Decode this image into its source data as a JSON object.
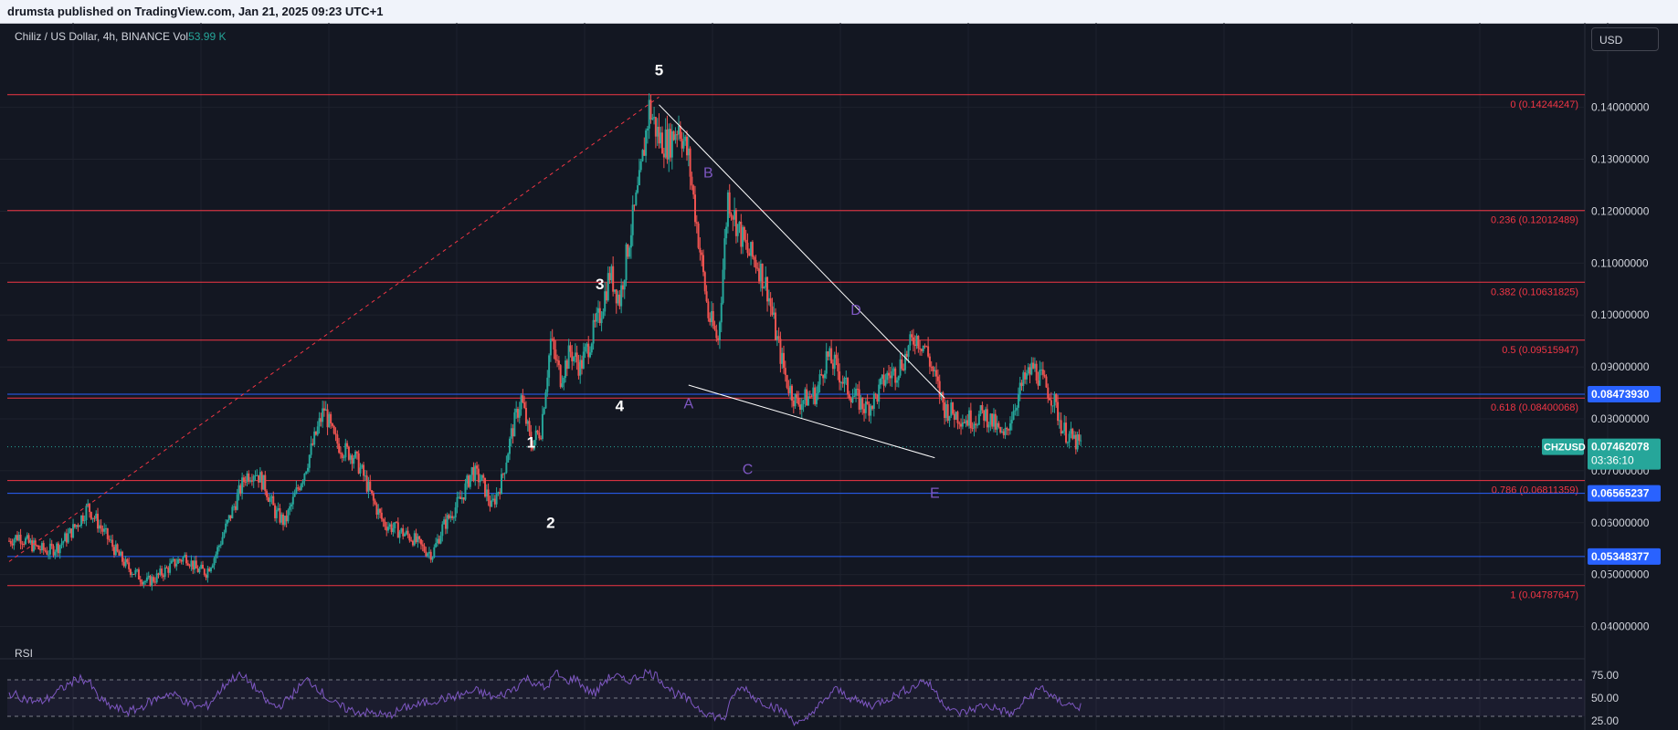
{
  "header": {
    "published_by": "drumsta published on TradingView.com, Jan 21, 2025 09:23 UTC+1"
  },
  "symbol": {
    "title": "Chiliz / US Dollar, 4h, BINANCE",
    "volume_label": "Vol",
    "volume_value": "53.99 K"
  },
  "currency_button": "USD",
  "rsi_label": "RSI",
  "chart_data": {
    "type": "candlestick",
    "symbol": "CHZUSD",
    "timeframe": "4h",
    "exchange": "BINANCE",
    "ylim": [
      0.035,
      0.1475
    ],
    "y_ticks": [
      "0.14000000",
      "0.13000000",
      "0.12000000",
      "0.11000000",
      "0.10000000",
      "0.09000000",
      "0.08000000",
      "0.07000000",
      "0.06000000",
      "0.05000000",
      "0.04000000"
    ],
    "last_price": "0.07462078",
    "countdown": "03:36:10",
    "price_series_approx": [
      0.0565,
      0.0575,
      0.056,
      0.055,
      0.0545,
      0.0555,
      0.0575,
      0.06,
      0.063,
      0.06,
      0.057,
      0.054,
      0.0515,
      0.05,
      0.0485,
      0.0495,
      0.051,
      0.0525,
      0.0535,
      0.051,
      0.0505,
      0.054,
      0.059,
      0.064,
      0.069,
      0.07,
      0.067,
      0.062,
      0.06,
      0.065,
      0.07,
      0.076,
      0.082,
      0.076,
      0.074,
      0.073,
      0.069,
      0.064,
      0.06,
      0.059,
      0.058,
      0.057,
      0.055,
      0.054,
      0.059,
      0.062,
      0.065,
      0.07,
      0.068,
      0.063,
      0.068,
      0.077,
      0.084,
      0.075,
      0.078,
      0.095,
      0.088,
      0.093,
      0.09,
      0.095,
      0.1,
      0.108,
      0.103,
      0.115,
      0.125,
      0.14,
      0.134,
      0.133,
      0.137,
      0.13,
      0.115,
      0.1,
      0.095,
      0.123,
      0.117,
      0.112,
      0.11,
      0.105,
      0.095,
      0.087,
      0.083,
      0.084,
      0.085,
      0.092,
      0.09,
      0.086,
      0.084,
      0.082,
      0.084,
      0.088,
      0.089,
      0.092,
      0.096,
      0.094,
      0.088,
      0.082,
      0.081,
      0.08,
      0.08,
      0.081,
      0.079,
      0.076,
      0.082,
      0.087,
      0.09,
      0.087,
      0.084,
      0.078,
      0.076,
      0.0745
    ],
    "fib_levels": [
      {
        "label": "0 (0.14244247)",
        "value": 0.14244247
      },
      {
        "label": "0.236 (0.12012489)",
        "value": 0.12012489
      },
      {
        "label": "0.382 (0.10631825)",
        "value": 0.10631825
      },
      {
        "label": "0.5 (0.09515947)",
        "value": 0.09515947
      },
      {
        "label": "0.618 (0.08400068)",
        "value": 0.08400068
      },
      {
        "label": "0.786 (0.06811359)",
        "value": 0.06811359
      },
      {
        "label": "1 (0.04787647)",
        "value": 0.04787647
      }
    ],
    "horizontal_lines": [
      {
        "value": 0.0847393,
        "label": "0.08473930"
      },
      {
        "value": 0.06565237,
        "label": "0.06565237"
      },
      {
        "value": 0.05348377,
        "label": "0.05348377"
      }
    ],
    "wave_labels": [
      {
        "text": "1",
        "time_index": 53,
        "price": 0.0745
      },
      {
        "text": "2",
        "time_index": 55,
        "price": 0.059
      },
      {
        "text": "3",
        "time_index": 60,
        "price": 0.105
      },
      {
        "text": "4",
        "time_index": 62,
        "price": 0.0815
      },
      {
        "text": "5",
        "time_index": 66,
        "price": 0.1462
      }
    ],
    "pattern_labels": [
      {
        "text": "A",
        "time_index": 69,
        "price": 0.082
      },
      {
        "text": "B",
        "time_index": 71,
        "price": 0.1265
      },
      {
        "text": "C",
        "time_index": 75,
        "price": 0.0694
      },
      {
        "text": "D",
        "time_index": 86,
        "price": 0.1
      },
      {
        "text": "E",
        "time_index": 94,
        "price": 0.0648
      }
    ],
    "trend_lines": [
      {
        "from": {
          "t": 66,
          "p": 0.1405
        },
        "to": {
          "t": 95,
          "p": 0.084
        },
        "style": "solid"
      },
      {
        "from": {
          "t": 69,
          "p": 0.0865
        },
        "to": {
          "t": 94,
          "p": 0.0725
        },
        "style": "solid"
      },
      {
        "from": {
          "t": 0,
          "p": 0.0525
        },
        "to": {
          "t": 66,
          "p": 0.142
        },
        "style": "dashed"
      }
    ],
    "rsi": {
      "ylim": [
        15,
        85
      ],
      "ticks": [
        "75.00",
        "50.00",
        "25.00"
      ],
      "bands": [
        70,
        30
      ],
      "midline": 50,
      "values_approx": [
        55,
        52,
        48,
        45,
        50,
        58,
        65,
        72,
        68,
        50,
        42,
        38,
        35,
        38,
        45,
        50,
        55,
        52,
        44,
        40,
        42,
        55,
        68,
        75,
        70,
        58,
        45,
        40,
        48,
        60,
        70,
        62,
        50,
        42,
        38,
        35,
        34,
        33,
        30,
        35,
        40,
        42,
        45,
        48,
        50,
        52,
        55,
        58,
        54,
        50,
        56,
        62,
        72,
        66,
        60,
        78,
        68,
        72,
        60,
        55,
        70,
        75,
        68,
        72,
        78,
        76,
        65,
        55,
        50,
        42,
        35,
        30,
        28,
        56,
        62,
        50,
        45,
        40,
        35,
        25,
        22,
        38,
        45,
        60,
        55,
        48,
        44,
        42,
        48,
        52,
        58,
        62,
        70,
        60,
        45,
        35,
        34,
        38,
        42,
        40,
        36,
        32,
        45,
        55,
        62,
        50,
        45,
        42,
        40
      ]
    },
    "colors": {
      "up": "#26a69a",
      "down": "#ef5350",
      "fib": "#f23645",
      "hline": "#2962ff",
      "wave_label": "#ffffff",
      "pattern_label": "#7e57c2",
      "rsi_line": "#7e57c2",
      "background": "#131722",
      "grid": "#1e222d"
    }
  }
}
